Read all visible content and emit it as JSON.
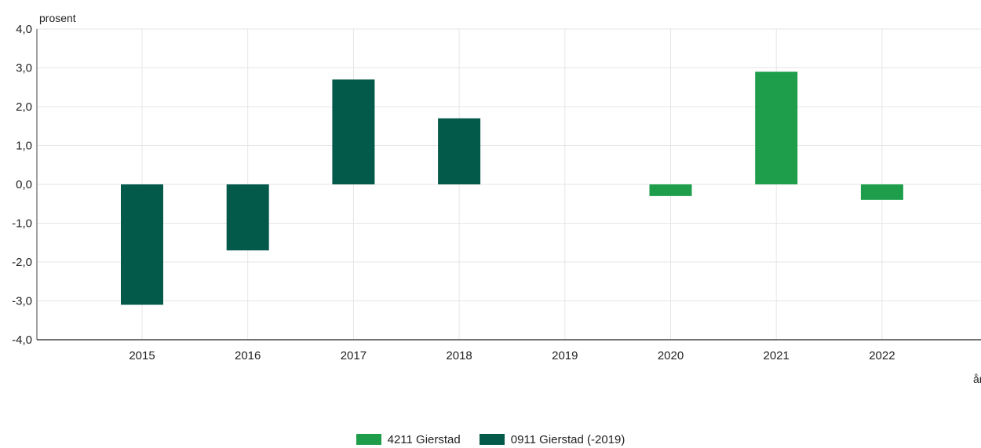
{
  "chart_data": {
    "type": "bar",
    "categories": [
      "2015",
      "2016",
      "2017",
      "2018",
      "2019",
      "2020",
      "2021",
      "2022"
    ],
    "series": [
      {
        "name": "0911 Gierstad (-2019)",
        "color": "#03594a",
        "values": [
          -3.1,
          -1.7,
          2.7,
          1.7,
          null,
          null,
          null,
          null
        ]
      },
      {
        "name": "4211 Gierstad",
        "color": "#1e9e4b",
        "values": [
          null,
          null,
          null,
          null,
          null,
          -0.3,
          2.9,
          -0.4
        ]
      }
    ],
    "ylabel": "prosent",
    "xlabel": "år",
    "ylim": [
      -4.0,
      4.0
    ],
    "yticks": [
      "4,0",
      "3,0",
      "2,0",
      "1,0",
      "0,0",
      "-1,0",
      "-2,0",
      "-3,0",
      "-4,0"
    ],
    "grid": true,
    "legend_position": "bottom"
  }
}
